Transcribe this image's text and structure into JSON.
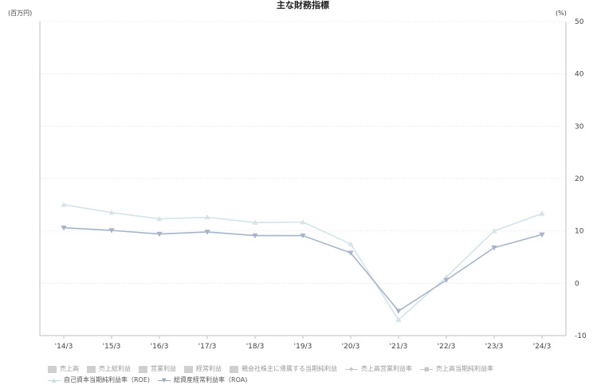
{
  "chart_data": {
    "type": "line",
    "title": "主な財務指標",
    "left_unit": "(百万円)",
    "right_unit": "(%)",
    "categories": [
      "'14/3",
      "'15/3",
      "'16/3",
      "'17/3",
      "'18/3",
      "'19/3",
      "'20/3",
      "'21/3",
      "'22/3",
      "'23/3",
      "'24/3"
    ],
    "right_axis": {
      "ylim": [
        -10,
        50
      ],
      "ticks": [
        50,
        40,
        30,
        20,
        10,
        0,
        -10
      ]
    },
    "series": [
      {
        "name": "自己資本当期純利益率（ROE)",
        "marker": "triangle-up",
        "color": "#d3e4ea",
        "values": [
          15.0,
          13.5,
          12.3,
          12.6,
          11.6,
          11.7,
          7.5,
          -7.0,
          1.2,
          10.0,
          13.3
        ]
      },
      {
        "name": "総資産経常利益率（ROA)",
        "marker": "triangle-down",
        "color": "#a6b4c9",
        "values": [
          10.6,
          10.1,
          9.4,
          9.8,
          9.1,
          9.1,
          5.8,
          -5.3,
          0.6,
          6.8,
          9.3
        ]
      }
    ],
    "legend": {
      "row1": [
        {
          "label": "売上高",
          "kind": "box"
        },
        {
          "label": "売上総利益",
          "kind": "box"
        },
        {
          "label": "営業利益",
          "kind": "box"
        },
        {
          "label": "経常利益",
          "kind": "box"
        },
        {
          "label": "親会社株主に帰属する当期純利益",
          "kind": "box"
        },
        {
          "label": "売上高営業利益率",
          "kind": "line"
        },
        {
          "label": "売上高当期純利益率",
          "kind": "line"
        }
      ],
      "row2": [
        {
          "label": "自己資本当期純利益率（ROE)",
          "kind": "line"
        },
        {
          "label": "総資産経常利益率（ROA)",
          "kind": "line"
        }
      ]
    },
    "grid": true,
    "legend_position": "bottom"
  }
}
